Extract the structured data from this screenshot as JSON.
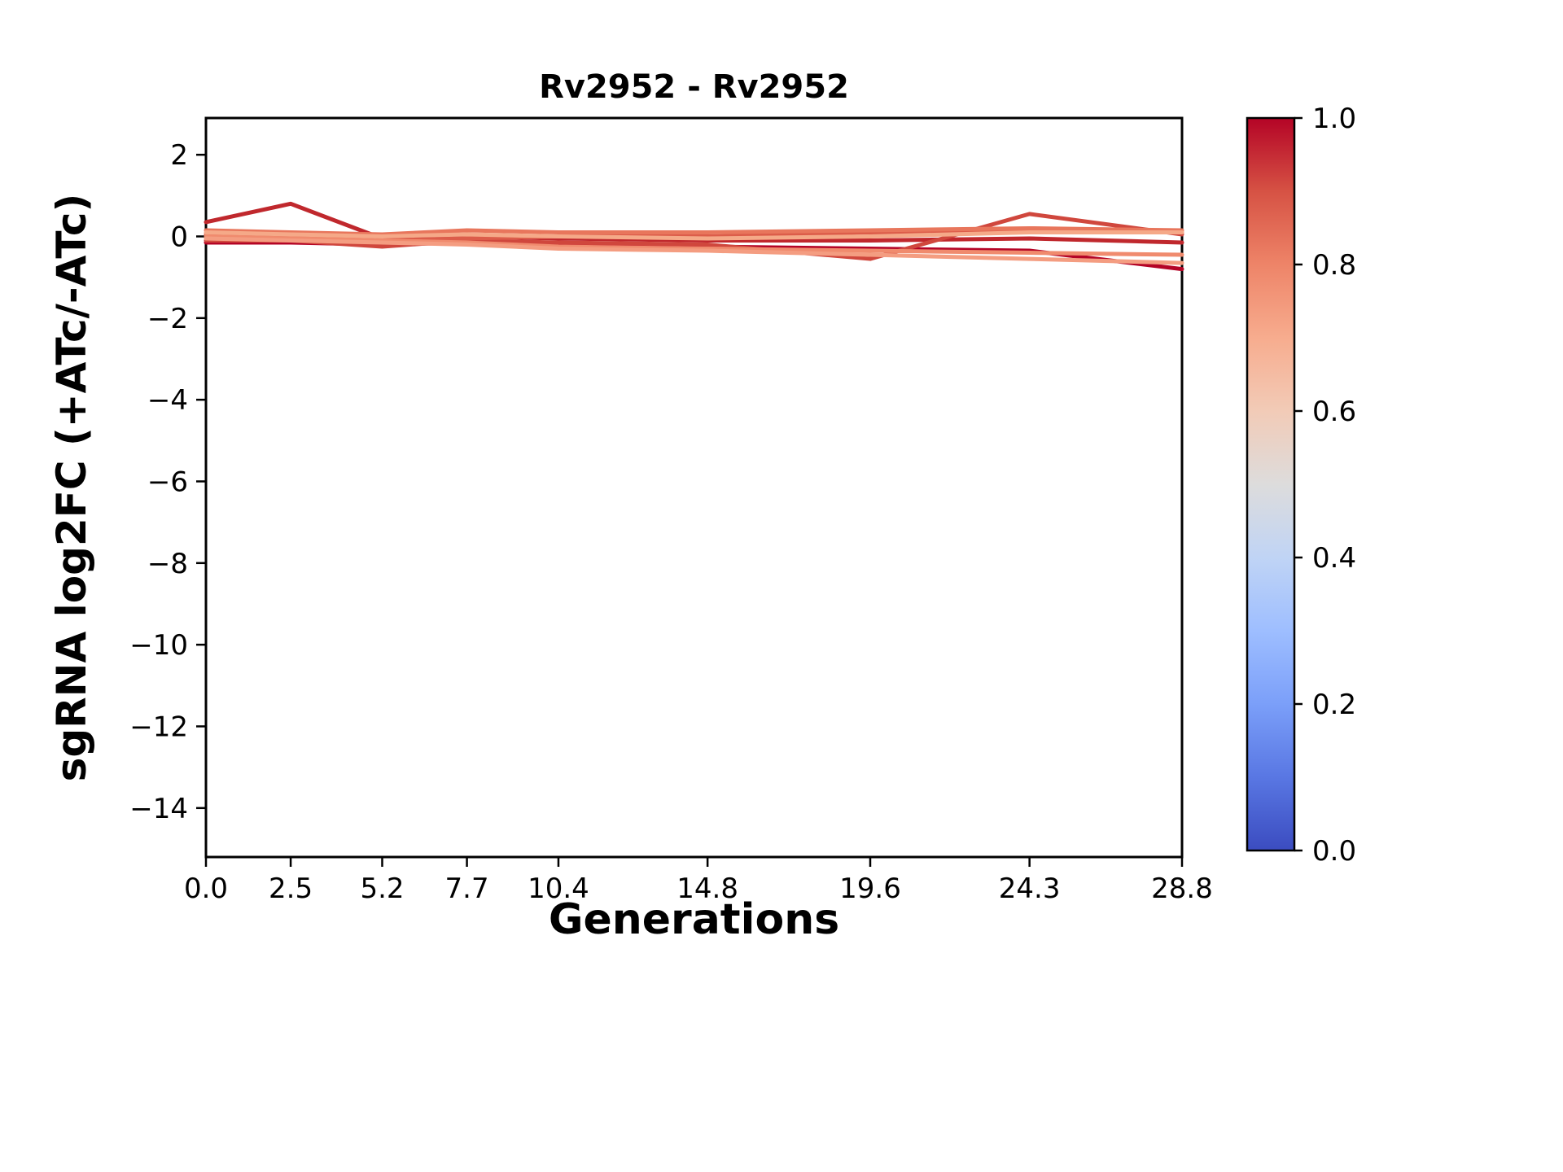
{
  "chart_data": {
    "type": "line",
    "title": "Rv2952 - Rv2952",
    "xlabel": "Generations",
    "ylabel": "sgRNA log2FC (+ATc/-ATc)",
    "x": [
      0.0,
      2.5,
      5.2,
      7.7,
      10.4,
      14.8,
      19.6,
      24.3,
      28.8
    ],
    "xlim": [
      0.0,
      28.8
    ],
    "ylim": [
      -15.2,
      2.9
    ],
    "xtick_labels": [
      "0.0",
      "2.5",
      "5.2",
      "7.7",
      "10.4",
      "14.8",
      "19.6",
      "24.3",
      "28.8"
    ],
    "yticks": [
      2,
      0,
      -2,
      -4,
      -6,
      -8,
      -10,
      -12,
      -14
    ],
    "ytick_labels": [
      "2",
      "0",
      "−2",
      "−4",
      "−6",
      "−8",
      "−10",
      "−12",
      "−14"
    ],
    "grid": false,
    "line_width": 5,
    "series": [
      {
        "name": "series-1",
        "colormap_value": 0.97,
        "color": "#c0282d",
        "y": [
          0.35,
          0.8,
          -0.05,
          0.0,
          -0.05,
          -0.1,
          -0.1,
          -0.05,
          -0.15
        ]
      },
      {
        "name": "series-2",
        "colormap_value": 1.0,
        "color": "#b40426",
        "y": [
          -0.15,
          -0.15,
          -0.2,
          -0.15,
          -0.2,
          -0.25,
          -0.3,
          -0.35,
          -0.8
        ]
      },
      {
        "name": "series-3",
        "colormap_value": 0.9,
        "color": "#d0473d",
        "y": [
          -0.1,
          -0.1,
          -0.25,
          -0.1,
          -0.15,
          -0.2,
          -0.55,
          0.55,
          0.05
        ]
      },
      {
        "name": "series-4",
        "colormap_value": 0.85,
        "color": "#dc5d4a",
        "y": [
          0.05,
          0.0,
          -0.1,
          -0.05,
          0.0,
          0.0,
          0.1,
          0.1,
          0.1
        ]
      },
      {
        "name": "series-5",
        "colormap_value": 0.8,
        "color": "#e8765c",
        "y": [
          0.15,
          0.1,
          0.05,
          0.15,
          0.1,
          0.1,
          0.15,
          0.2,
          0.15
        ]
      },
      {
        "name": "series-6",
        "colormap_value": 0.75,
        "color": "#f08b6e",
        "y": [
          0.0,
          -0.05,
          -0.1,
          -0.15,
          -0.25,
          -0.3,
          -0.35,
          -0.4,
          -0.45
        ]
      },
      {
        "name": "series-7",
        "colormap_value": 0.7,
        "color": "#f49d81",
        "y": [
          -0.05,
          -0.1,
          -0.15,
          -0.2,
          -0.3,
          -0.35,
          -0.45,
          -0.55,
          -0.65
        ]
      },
      {
        "name": "series-8",
        "colormap_value": 0.68,
        "color": "#f5a988",
        "y": [
          0.1,
          0.05,
          0.0,
          0.05,
          0.0,
          -0.05,
          0.0,
          0.1,
          0.1
        ]
      }
    ],
    "colorbar": {
      "colormap": "coolwarm",
      "min": 0.0,
      "max": 1.0,
      "ticks": [
        1.0,
        0.8,
        0.6,
        0.4,
        0.2,
        0.0
      ],
      "tick_labels": [
        "1.0",
        "0.8",
        "0.6",
        "0.4",
        "0.2",
        "0.0"
      ],
      "stops": [
        {
          "value": 0.0,
          "color": "#3b4cc0"
        },
        {
          "value": 0.1,
          "color": "#5977e3"
        },
        {
          "value": 0.2,
          "color": "#7b9ff9"
        },
        {
          "value": 0.3,
          "color": "#9ebeff"
        },
        {
          "value": 0.4,
          "color": "#c0d4f5"
        },
        {
          "value": 0.5,
          "color": "#dddcdc"
        },
        {
          "value": 0.6,
          "color": "#f2cbb7"
        },
        {
          "value": 0.7,
          "color": "#f7ac8e"
        },
        {
          "value": 0.8,
          "color": "#ee8468"
        },
        {
          "value": 0.9,
          "color": "#d65244"
        },
        {
          "value": 1.0,
          "color": "#b40426"
        }
      ]
    },
    "legend": null
  }
}
